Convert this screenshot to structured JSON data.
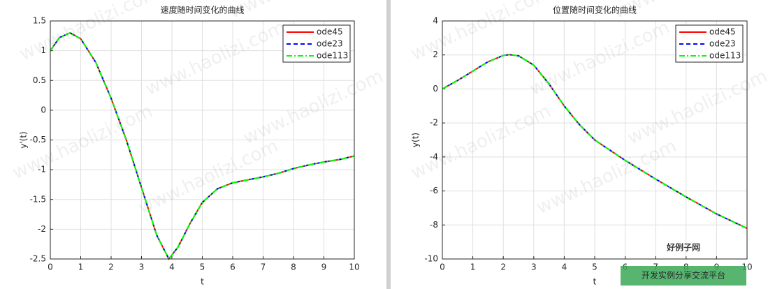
{
  "chart_data": [
    {
      "type": "line",
      "title": "速度随时间变化的曲线",
      "xlabel": "t",
      "ylabel": "y'(t)",
      "x": [
        0,
        0.3,
        0.65,
        1,
        1.5,
        2,
        2.5,
        3,
        3.5,
        3.9,
        4.2,
        4.6,
        5,
        5.5,
        6,
        6.5,
        7,
        7.5,
        8,
        8.5,
        9,
        9.5,
        10
      ],
      "series": [
        {
          "name": "ode45",
          "color": "#ff0000",
          "dash": "solid",
          "values": [
            1.0,
            1.22,
            1.3,
            1.2,
            0.8,
            0.2,
            -0.5,
            -1.3,
            -2.1,
            -2.5,
            -2.3,
            -1.9,
            -1.55,
            -1.32,
            -1.22,
            -1.17,
            -1.12,
            -1.06,
            -0.98,
            -0.92,
            -0.87,
            -0.83,
            -0.77
          ]
        },
        {
          "name": "ode23",
          "color": "#0000ff",
          "dash": "dashed",
          "values": [
            1.0,
            1.22,
            1.3,
            1.2,
            0.8,
            0.2,
            -0.5,
            -1.3,
            -2.1,
            -2.5,
            -2.3,
            -1.9,
            -1.55,
            -1.32,
            -1.22,
            -1.17,
            -1.12,
            -1.06,
            -0.98,
            -0.92,
            -0.87,
            -0.83,
            -0.77
          ]
        },
        {
          "name": "ode113",
          "color": "#00ff00",
          "dash": "dashdot",
          "values": [
            1.0,
            1.22,
            1.3,
            1.2,
            0.8,
            0.2,
            -0.5,
            -1.3,
            -2.1,
            -2.5,
            -2.3,
            -1.9,
            -1.55,
            -1.32,
            -1.22,
            -1.17,
            -1.12,
            -1.06,
            -0.98,
            -0.92,
            -0.87,
            -0.83,
            -0.77
          ]
        }
      ],
      "xlim": [
        0,
        10
      ],
      "xticks": [
        0,
        1,
        2,
        3,
        4,
        5,
        6,
        7,
        8,
        9,
        10
      ],
      "ylim": [
        -2.5,
        1.5
      ],
      "yticks": [
        -2.5,
        -2,
        -1.5,
        -1,
        -0.5,
        0,
        0.5,
        1,
        1.5
      ],
      "grid": true,
      "legend": "northeast"
    },
    {
      "type": "line",
      "title": "位置随时间变化的曲线",
      "xlabel": "t",
      "ylabel": "y(t)",
      "x": [
        0,
        0.5,
        1,
        1.5,
        2,
        2.2,
        2.5,
        3,
        3.5,
        4,
        4.5,
        5,
        5.5,
        6,
        7,
        8,
        9,
        10
      ],
      "series": [
        {
          "name": "ode45",
          "color": "#ff0000",
          "dash": "solid",
          "values": [
            0,
            0.5,
            1.05,
            1.6,
            1.97,
            2.02,
            1.95,
            1.4,
            0.3,
            -1.0,
            -2.1,
            -3.0,
            -3.6,
            -4.2,
            -5.3,
            -6.35,
            -7.35,
            -8.2
          ]
        },
        {
          "name": "ode23",
          "color": "#0000ff",
          "dash": "dashed",
          "values": [
            0,
            0.5,
            1.05,
            1.6,
            1.97,
            2.02,
            1.95,
            1.4,
            0.3,
            -1.0,
            -2.1,
            -3.0,
            -3.6,
            -4.2,
            -5.3,
            -6.35,
            -7.35,
            -8.2
          ]
        },
        {
          "name": "ode113",
          "color": "#00ff00",
          "dash": "dashdot",
          "values": [
            0,
            0.5,
            1.05,
            1.6,
            1.97,
            2.02,
            1.95,
            1.4,
            0.3,
            -1.0,
            -2.1,
            -3.0,
            -3.6,
            -4.2,
            -5.3,
            -6.35,
            -7.35,
            -8.2
          ]
        }
      ],
      "xlim": [
        0,
        10
      ],
      "xticks": [
        0,
        1,
        2,
        3,
        4,
        5,
        6,
        7,
        8,
        9,
        10
      ],
      "ylim": [
        -10,
        4
      ],
      "yticks": [
        -10,
        -8,
        -6,
        -4,
        -2,
        0,
        2,
        4
      ],
      "grid": true,
      "legend": "northeast"
    }
  ],
  "watermark": {
    "site": "www.haolizi.com",
    "logo": "好例子网",
    "slogan": "开发实例分享交流平台"
  }
}
